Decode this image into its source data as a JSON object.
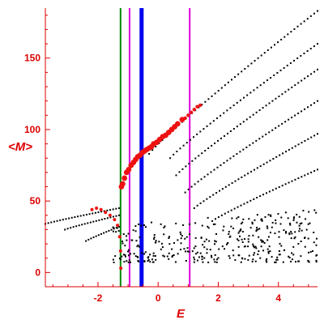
{
  "chart_data": {
    "type": "scatter",
    "xlabel": "E",
    "ylabel": "<M>",
    "xlim": [
      -3.75,
      5.3
    ],
    "ylim": [
      -10,
      185
    ],
    "x_ticks": [
      -2,
      0,
      2,
      4
    ],
    "y_ticks": [
      0,
      50,
      100,
      150
    ],
    "grid": false,
    "legend": "none",
    "colors": {
      "axis": "#dd0000",
      "black_points": "#000000",
      "red_points": "#ee1111",
      "green_line": "#008800",
      "blue_line": "#0000ee",
      "magenta_line": "#dd00dd"
    },
    "vertical_lines": [
      {
        "x": -1.25,
        "color": "green",
        "width": 2
      },
      {
        "x": -0.95,
        "color": "magenta",
        "width": 2
      },
      {
        "x": -0.55,
        "color": "blue",
        "width": 5
      },
      {
        "x": 1.05,
        "color": "magenta",
        "width": 2
      }
    ],
    "red_series": {
      "steep_branch": [
        [
          -1.22,
          60
        ],
        [
          -1.18,
          62
        ],
        [
          -1.12,
          66
        ],
        [
          -1.05,
          70
        ],
        [
          -0.98,
          72
        ],
        [
          -0.9,
          75
        ],
        [
          -0.82,
          77
        ],
        [
          -0.75,
          79
        ],
        [
          -0.68,
          81
        ],
        [
          -0.6,
          82
        ],
        [
          -0.52,
          84
        ],
        [
          -0.45,
          85
        ],
        [
          -0.38,
          86
        ],
        [
          -0.3,
          87
        ],
        [
          -0.22,
          88
        ],
        [
          -0.15,
          90
        ],
        [
          -0.05,
          91
        ],
        [
          0.05,
          93
        ],
        [
          0.15,
          95
        ],
        [
          0.25,
          96
        ],
        [
          0.35,
          98
        ],
        [
          0.45,
          100
        ],
        [
          0.55,
          102
        ],
        [
          0.65,
          104
        ],
        [
          0.8,
          107
        ]
      ],
      "upper_tail": [
        [
          0.9,
          108
        ],
        [
          1.0,
          110
        ],
        [
          1.1,
          112
        ],
        [
          1.2,
          114
        ],
        [
          1.3,
          116
        ],
        [
          1.4,
          117
        ]
      ],
      "low_branch": [
        [
          -2.2,
          44
        ],
        [
          -2.05,
          45
        ],
        [
          -1.9,
          44
        ],
        [
          -1.75,
          42
        ],
        [
          -1.6,
          40
        ],
        [
          -1.45,
          37
        ],
        [
          -1.35,
          33
        ],
        [
          -1.28,
          25
        ],
        [
          -1.25,
          15
        ],
        [
          -1.24,
          3
        ]
      ]
    },
    "black_curves": [
      {
        "x0": -0.3,
        "y0": 83,
        "x1": 5.3,
        "y1": 183,
        "n": 52
      },
      {
        "x0": 0.4,
        "y0": 80,
        "x1": 5.3,
        "y1": 160,
        "n": 45
      },
      {
        "x0": 0.6,
        "y0": 68,
        "x1": 5.3,
        "y1": 142,
        "n": 45
      },
      {
        "x0": 0.9,
        "y0": 56,
        "x1": 5.3,
        "y1": 120,
        "n": 42
      },
      {
        "x0": 1.2,
        "y0": 45,
        "x1": 5.3,
        "y1": 97,
        "n": 40
      },
      {
        "x0": 1.8,
        "y0": 36,
        "x1": 5.3,
        "y1": 72,
        "n": 34
      },
      {
        "x0": -3.75,
        "y0": 34,
        "x1": -1.3,
        "y1": 45,
        "n": 26
      },
      {
        "x0": -3.1,
        "y0": 30,
        "x1": -1.3,
        "y1": 40,
        "n": 20
      },
      {
        "x0": -2.4,
        "y0": 22,
        "x1": -1.3,
        "y1": 32,
        "n": 14
      }
    ],
    "black_cloud": {
      "count": 360,
      "x_range": [
        -1.5,
        5.3
      ],
      "y_range": [
        3,
        40
      ],
      "seed": 7
    }
  }
}
